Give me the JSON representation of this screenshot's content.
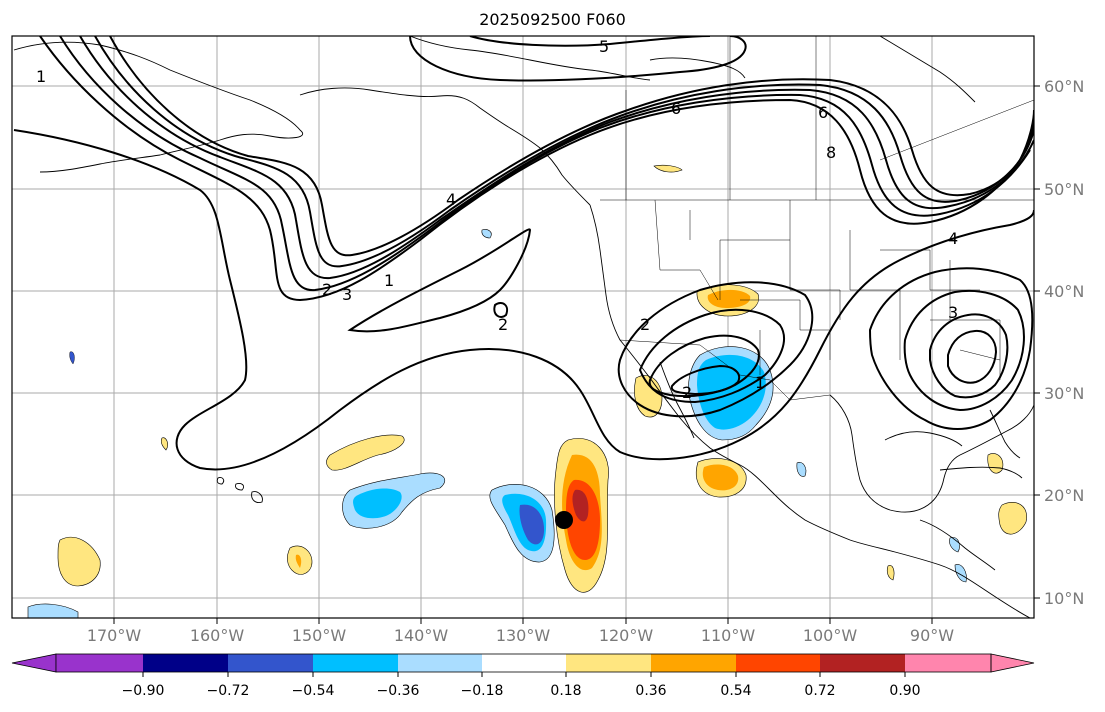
{
  "title": "2025092500 F060",
  "latitude_labels": [
    "60°N",
    "50°N",
    "40°N",
    "30°N",
    "20°N",
    "10°N"
  ],
  "longitude_labels": [
    "170°W",
    "160°W",
    "150°W",
    "140°W",
    "130°W",
    "120°W",
    "110°W",
    "100°W",
    "90°W"
  ],
  "contour_labels": [
    "1",
    "5",
    "6",
    "4",
    "3",
    "2",
    "1",
    "2",
    "2",
    "1",
    "6",
    "8",
    "4",
    "3",
    "2"
  ],
  "colorbar": {
    "tick_labels": [
      "−0.90",
      "−0.72",
      "−0.54",
      "−0.36",
      "−0.18",
      "0.18",
      "0.36",
      "0.54",
      "0.72",
      "0.90"
    ],
    "colors": [
      "#9933cc",
      "#000088",
      "#3355cc",
      "#00bfff",
      "#aaddff",
      "#ffffff",
      "#ffe680",
      "#ffa500",
      "#ff4500",
      "#b22222",
      "#ff85ad"
    ]
  },
  "marker": {
    "label": "storm-center",
    "lon": -126.3,
    "lat": 17.5
  }
}
